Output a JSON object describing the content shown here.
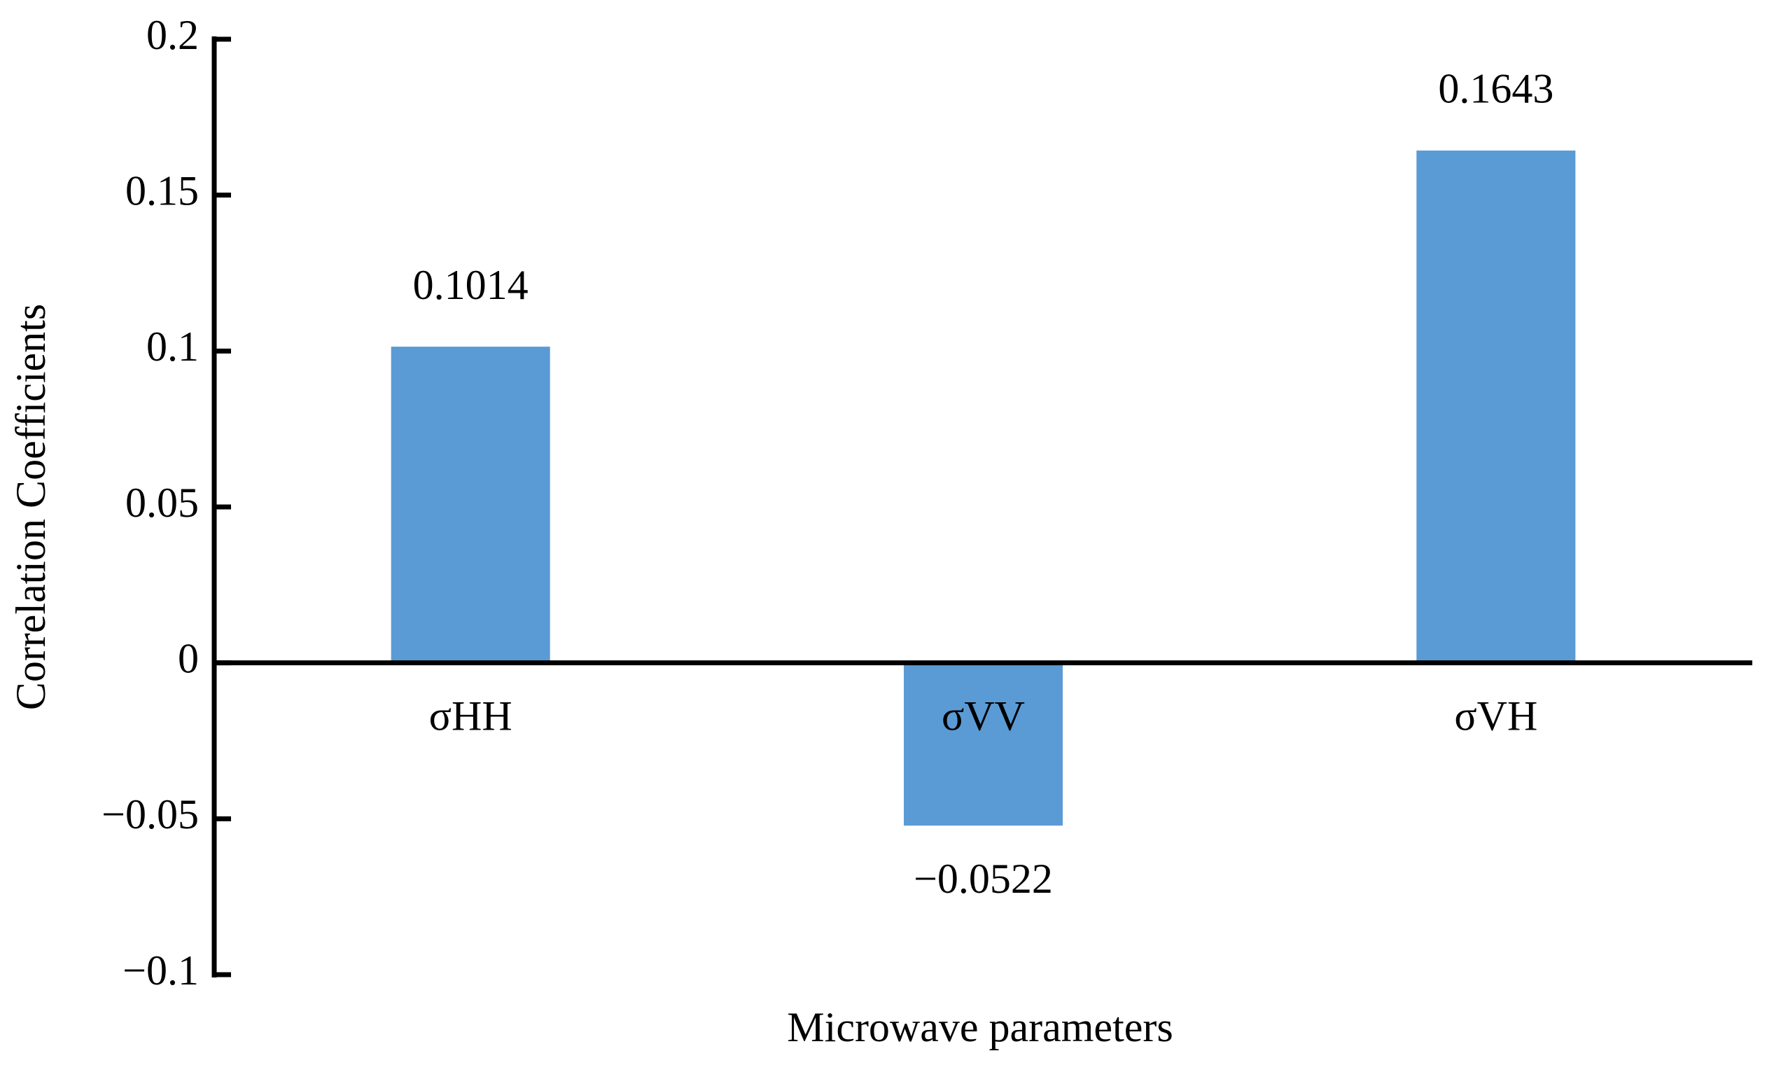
{
  "chart_data": {
    "type": "bar",
    "x_label": "Microwave parameters",
    "y_label": "Correlation Coefficients",
    "categories": [
      "σHH",
      "σVV",
      "σVH"
    ],
    "values": [
      0.1014,
      -0.0522,
      0.1643
    ],
    "value_labels": [
      "0.1014",
      "−0.0522",
      "0.1643"
    ],
    "color": "#5b9bd5",
    "ylim": [
      -0.1,
      0.2
    ],
    "yticks": [
      {
        "value": -0.1,
        "label": "−0.1"
      },
      {
        "value": -0.05,
        "label": "−0.05"
      },
      0,
      0.05,
      0.1,
      0.15,
      0.2
    ],
    "grid": false
  }
}
